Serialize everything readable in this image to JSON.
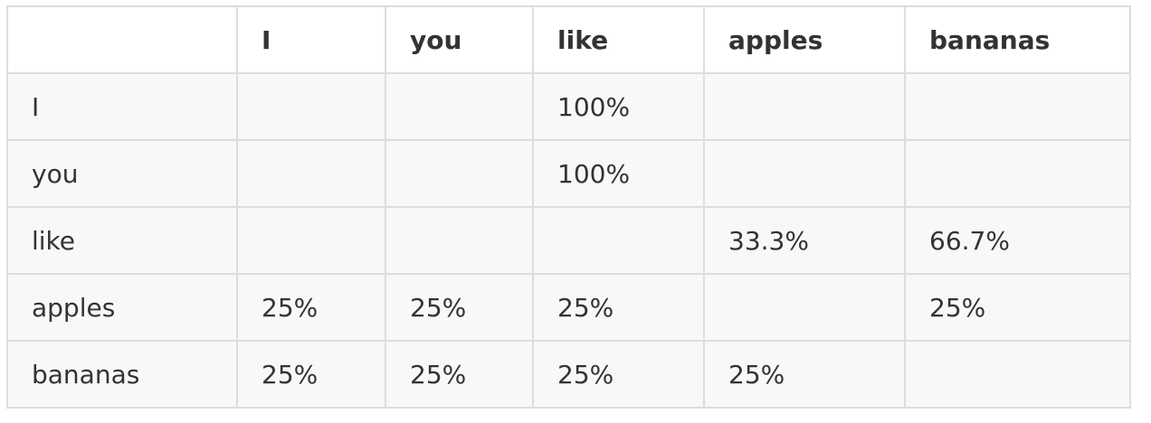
{
  "table": {
    "headers": [
      "",
      "I",
      "you",
      "like",
      "apples",
      "bananas"
    ],
    "rows": [
      [
        "I",
        "",
        "",
        "100%",
        "",
        ""
      ],
      [
        "you",
        "",
        "",
        "100%",
        "",
        ""
      ],
      [
        "like",
        "",
        "",
        "",
        "33.3%",
        "66.7%"
      ],
      [
        "apples",
        "25%",
        "25%",
        "25%",
        "",
        "25%"
      ],
      [
        "bananas",
        "25%",
        "25%",
        "25%",
        "25%",
        ""
      ]
    ]
  },
  "colors": {
    "border": "#dddddd",
    "row_background": "#f8f8f8",
    "text": "#333333"
  }
}
